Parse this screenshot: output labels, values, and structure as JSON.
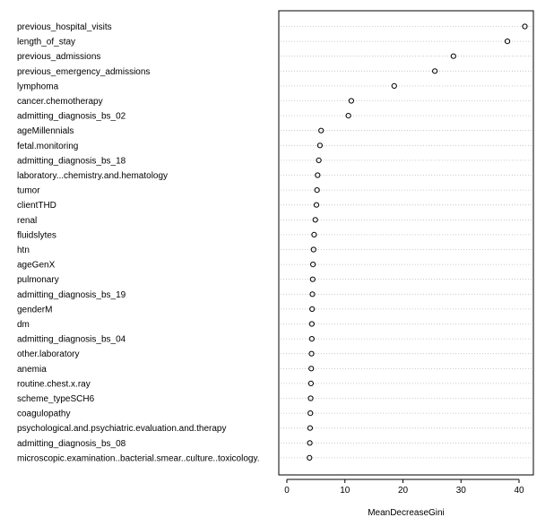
{
  "chart_data": {
    "type": "scatter",
    "title": "",
    "xlabel": "MeanDecreaseGini",
    "ylabel": "",
    "xlim": [
      0,
      42
    ],
    "x_ticks": [
      0,
      10,
      20,
      30,
      40
    ],
    "grid": "horizontal dotted",
    "point_style": "open circle",
    "point_color": "#000000",
    "grid_color": "#bebebe",
    "categories": [
      "previous_hospital_visits",
      "length_of_stay",
      "previous_admissions",
      "previous_emergency_admissions",
      "lymphoma",
      "cancer.chemotherapy",
      "admitting_diagnosis_bs_02",
      "ageMillennials",
      "fetal.monitoring",
      "admitting_diagnosis_bs_18",
      "laboratory...chemistry.and.hematology",
      "tumor",
      "clientTHD",
      "renal",
      "fluidslytes",
      "htn",
      "ageGenX",
      "pulmonary",
      "admitting_diagnosis_bs_19",
      "genderM",
      "dm",
      "admitting_diagnosis_bs_04",
      "other.laboratory",
      "anemia",
      "routine.chest.x.ray",
      "scheme_typeSCH6",
      "coagulopathy",
      "psychological.and.psychiatric.evaluation.and.therapy",
      "admitting_diagnosis_bs_08",
      "microscopic.examination..bacterial.smear..culture..toxicology."
    ],
    "values": [
      41.0,
      38.0,
      28.7,
      25.5,
      18.5,
      11.1,
      10.6,
      5.9,
      5.7,
      5.5,
      5.3,
      5.2,
      5.1,
      4.9,
      4.7,
      4.6,
      4.5,
      4.45,
      4.4,
      4.35,
      4.3,
      4.3,
      4.25,
      4.2,
      4.15,
      4.1,
      4.05,
      4.0,
      3.95,
      3.9
    ]
  }
}
